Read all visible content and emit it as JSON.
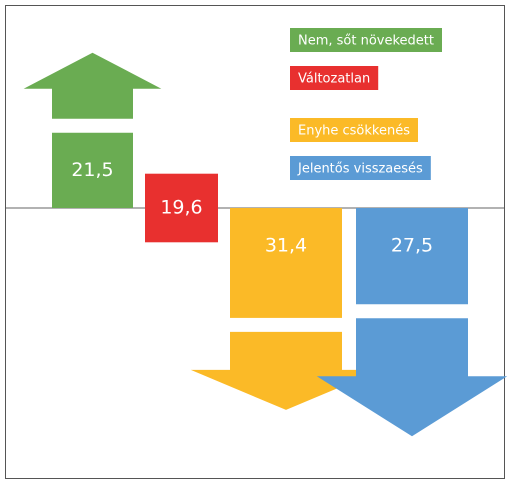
{
  "chart_data": {
    "type": "bar",
    "categories": [
      "Nem, sőt növekedett",
      "Változatlan",
      "Enyhe csökkenés",
      "Jelentős visszaesés"
    ],
    "values": [
      21.5,
      19.6,
      31.4,
      27.5
    ],
    "value_labels": [
      "21,5",
      "19,6",
      "31,4",
      "27,5"
    ],
    "colors": [
      "#6aac52",
      "#e8302f",
      "#fbba27",
      "#5b9bd5"
    ]
  }
}
